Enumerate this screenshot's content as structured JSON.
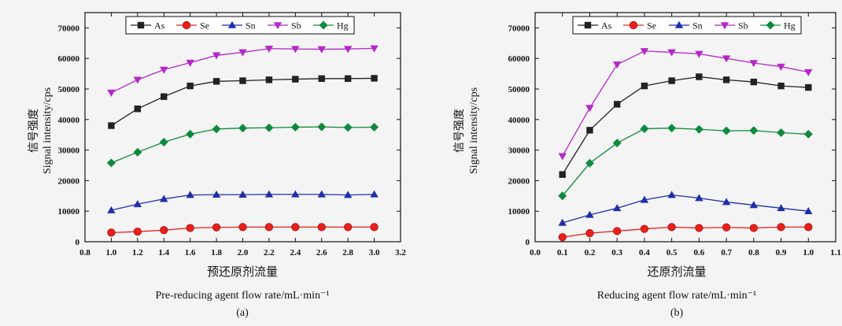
{
  "chart_data": [
    {
      "type": "line",
      "panel_label": "(a)",
      "xlabel_cn": "预还原剂流量",
      "xlabel_en": "Pre-reducing  agent  flow  rate/mL·min⁻¹",
      "ylabel_cn": "信号强度",
      "ylabel_en": "Signal  intensity/cps",
      "xlim": [
        0.8,
        3.2
      ],
      "ylim": [
        0,
        75000
      ],
      "xticks": [
        "0.8",
        "1.0",
        "1.2",
        "1.4",
        "1.6",
        "1.8",
        "2.0",
        "2.2",
        "2.4",
        "2.6",
        "2.8",
        "3.0",
        "3.2"
      ],
      "yticks": [
        "0",
        "10000",
        "20000",
        "30000",
        "40000",
        "50000",
        "60000",
        "70000"
      ],
      "legend_position": "top",
      "grid": false,
      "x": [
        1.0,
        1.2,
        1.4,
        1.6,
        1.8,
        2.0,
        2.2,
        2.4,
        2.6,
        2.8,
        3.0
      ],
      "series": [
        {
          "name": "As",
          "values": [
            38000,
            43500,
            47500,
            51000,
            52500,
            52700,
            53000,
            53200,
            53400,
            53400,
            53500
          ]
        },
        {
          "name": "Se",
          "values": [
            3000,
            3300,
            3800,
            4500,
            4700,
            4800,
            4800,
            4800,
            4800,
            4800,
            4800
          ]
        },
        {
          "name": "Sn",
          "values": [
            10300,
            12300,
            14000,
            15300,
            15400,
            15400,
            15500,
            15500,
            15500,
            15300,
            15500
          ]
        },
        {
          "name": "Sb",
          "values": [
            48800,
            53000,
            56300,
            58600,
            61000,
            62000,
            63200,
            63100,
            63000,
            63100,
            63300
          ]
        },
        {
          "name": "Hg",
          "values": [
            25800,
            29300,
            32600,
            35200,
            36900,
            37200,
            37300,
            37500,
            37600,
            37400,
            37500
          ]
        }
      ]
    },
    {
      "type": "line",
      "panel_label": "(b)",
      "xlabel_cn": "还原剂流量",
      "xlabel_en": "Reducing  agent  flow  rate/mL·min⁻¹",
      "ylabel_cn": "信号强度",
      "ylabel_en": "Signal  intensity/cps",
      "xlim": [
        0.0,
        1.1
      ],
      "ylim": [
        0,
        75000
      ],
      "xticks": [
        "0.0",
        "0.1",
        "0.2",
        "0.3",
        "0.4",
        "0.5",
        "0.6",
        "0.7",
        "0.8",
        "0.9",
        "1.0",
        "1.1"
      ],
      "yticks": [
        "0",
        "10000",
        "20000",
        "30000",
        "40000",
        "50000",
        "60000",
        "70000"
      ],
      "legend_position": "top",
      "grid": false,
      "x": [
        0.1,
        0.2,
        0.3,
        0.4,
        0.5,
        0.6,
        0.7,
        0.8,
        0.9,
        1.0
      ],
      "series": [
        {
          "name": "As",
          "values": [
            22000,
            36500,
            45000,
            51000,
            52700,
            54000,
            53000,
            52300,
            51000,
            50500
          ]
        },
        {
          "name": "Se",
          "values": [
            1500,
            2800,
            3500,
            4200,
            4800,
            4500,
            4700,
            4500,
            4800,
            4800
          ]
        },
        {
          "name": "Sn",
          "values": [
            6200,
            8800,
            11000,
            13700,
            15300,
            14300,
            13000,
            12000,
            11000,
            10000
          ]
        },
        {
          "name": "Sb",
          "values": [
            28000,
            43800,
            58000,
            62400,
            62000,
            61500,
            60000,
            58500,
            57300,
            55500
          ]
        },
        {
          "name": "Hg",
          "values": [
            15000,
            25700,
            32300,
            37000,
            37200,
            36800,
            36300,
            36400,
            35700,
            35200
          ]
        }
      ]
    }
  ],
  "styles": {
    "As": {
      "color": "#222222",
      "marker": "square"
    },
    "Se": {
      "color": "#e8201c",
      "marker": "circle"
    },
    "Sn": {
      "color": "#1f2fa8",
      "marker": "triangle-up"
    },
    "Sb": {
      "color": "#b528c8",
      "marker": "triangle-down"
    },
    "Hg": {
      "color": "#0e8a3c",
      "marker": "diamond"
    }
  }
}
